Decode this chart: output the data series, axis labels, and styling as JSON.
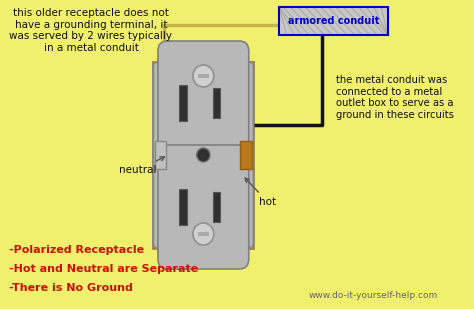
{
  "bg_color": "#f0ef6e",
  "top_left_text": "this older receptacle does not\nhave a grounding terminal, it\nwas served by 2 wires typically\nin a metal conduit",
  "top_right_text": "the metal conduit was\nconnected to a metal\noutlet box to serve as a\nground in these circuits",
  "armored_conduit_label": "armored conduit",
  "neutral_label": "neutral",
  "hot_label": "hot",
  "bottom_labels": [
    "-Polarized Receptacle",
    "-Hot and Neutral are Separate",
    "-There is No Ground"
  ],
  "website": "www.do-it-yourself-help.com",
  "outlet_gray": "#b8b8b8",
  "outlet_dark": "#909090",
  "outlet_light": "#d0d0d0",
  "metal_box_color": "#c0a060",
  "wire_tan": "#c8b44a",
  "wire_black": "#111111",
  "conduit_bg": "#c8c8c8",
  "conduit_border": "#0000cc",
  "screw_silver": "#c0c0c0",
  "screw_brass": "#b87820",
  "slot_dark": "#303030",
  "mount_screw_color": "#d0d0d0",
  "center_dot": "#303030"
}
